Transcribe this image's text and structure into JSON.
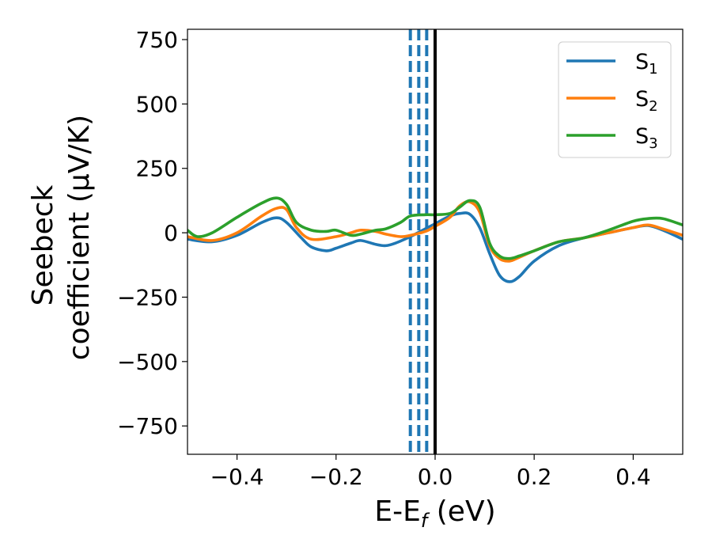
{
  "chart_data": {
    "type": "line",
    "xlabel_main": "E-E",
    "xlabel_sub": "f",
    "xlabel_unit": " (eV)",
    "ylabel_line1": "Seebeck",
    "ylabel_line2": "coefficient  (μV/K)",
    "xlim": [
      -0.5,
      0.5
    ],
    "ylim": [
      -860,
      790
    ],
    "xticks": [
      -0.4,
      -0.2,
      0.0,
      0.2,
      0.4
    ],
    "xtick_labels": [
      "−0.4",
      "−0.2",
      "0.0",
      "0.2",
      "0.4"
    ],
    "yticks": [
      750,
      500,
      250,
      0,
      -250,
      -500,
      -750
    ],
    "ytick_labels": [
      "750",
      "500",
      "250",
      "0",
      "−250",
      "−500",
      "−750"
    ],
    "grid": false,
    "legend_position": "top-right",
    "series": [
      {
        "name": "S",
        "sub": "1",
        "color": "#1f77b4",
        "x": [
          -0.5,
          -0.45,
          -0.4,
          -0.35,
          -0.32,
          -0.3,
          -0.27,
          -0.25,
          -0.22,
          -0.2,
          -0.17,
          -0.15,
          -0.12,
          -0.1,
          -0.08,
          -0.05,
          -0.03,
          0.0,
          0.03,
          0.05,
          0.07,
          0.09,
          0.11,
          0.13,
          0.15,
          0.17,
          0.2,
          0.25,
          0.3,
          0.35,
          0.4,
          0.43,
          0.46,
          0.5
        ],
        "y": [
          -25,
          -35,
          -10,
          40,
          58,
          40,
          -20,
          -55,
          -70,
          -60,
          -40,
          -30,
          -45,
          -50,
          -40,
          -15,
          5,
          35,
          65,
          75,
          72,
          20,
          -80,
          -165,
          -190,
          -170,
          -110,
          -50,
          -20,
          0,
          20,
          28,
          10,
          -25
        ]
      },
      {
        "name": "S",
        "sub": "2",
        "color": "#ff7f0e",
        "x": [
          -0.5,
          -0.45,
          -0.4,
          -0.35,
          -0.32,
          -0.3,
          -0.28,
          -0.25,
          -0.2,
          -0.17,
          -0.15,
          -0.12,
          -0.1,
          -0.07,
          -0.05,
          -0.02,
          0.0,
          0.03,
          0.05,
          0.07,
          0.09,
          0.11,
          0.13,
          0.15,
          0.17,
          0.2,
          0.25,
          0.3,
          0.35,
          0.4,
          0.43,
          0.46,
          0.5
        ],
        "y": [
          -15,
          -30,
          0,
          65,
          95,
          90,
          20,
          -25,
          -15,
          0,
          10,
          5,
          -5,
          -15,
          -10,
          5,
          25,
          60,
          105,
          120,
          80,
          -50,
          -100,
          -110,
          -95,
          -70,
          -35,
          -20,
          0,
          20,
          30,
          15,
          -10
        ]
      },
      {
        "name": "S",
        "sub": "3",
        "color": "#2ca02c",
        "x": [
          -0.5,
          -0.48,
          -0.45,
          -0.4,
          -0.35,
          -0.32,
          -0.3,
          -0.28,
          -0.25,
          -0.22,
          -0.2,
          -0.17,
          -0.15,
          -0.12,
          -0.1,
          -0.07,
          -0.05,
          -0.02,
          0.0,
          0.03,
          0.05,
          0.07,
          0.09,
          0.11,
          0.13,
          0.15,
          0.17,
          0.2,
          0.25,
          0.3,
          0.35,
          0.4,
          0.43,
          0.46,
          0.5
        ],
        "y": [
          10,
          -15,
          0,
          60,
          115,
          135,
          110,
          40,
          10,
          5,
          10,
          -10,
          -5,
          10,
          15,
          40,
          65,
          70,
          70,
          75,
          100,
          125,
          100,
          -40,
          -90,
          -100,
          -90,
          -70,
          -35,
          -20,
          10,
          45,
          55,
          55,
          30
        ]
      }
    ],
    "vlines_dashed": {
      "color": "#1f77b4",
      "x": [
        -0.05,
        -0.033,
        -0.017
      ]
    },
    "vline_solid": {
      "color": "#000000",
      "x": 0.0
    }
  }
}
